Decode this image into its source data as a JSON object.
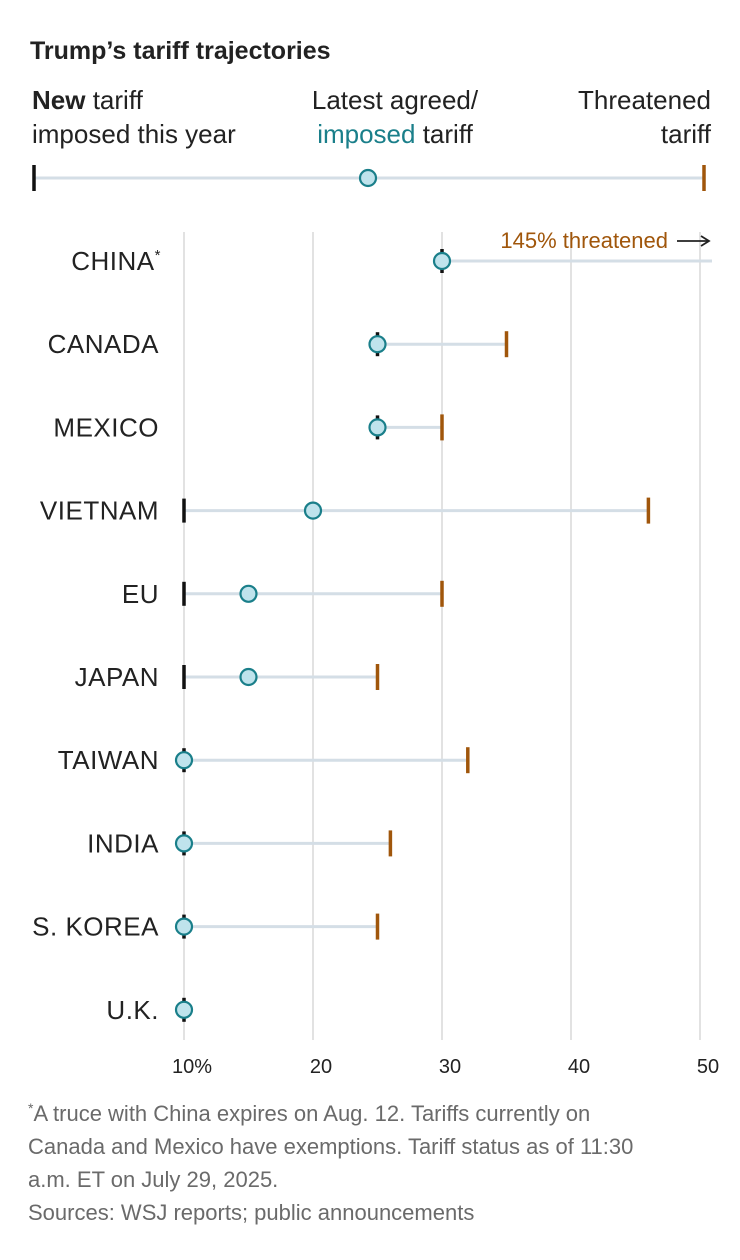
{
  "colors": {
    "new_tariff": "#111111",
    "agreed": "#1a7f8a",
    "agreed_fill": "#bfe3ec",
    "threatened": "#a0560b",
    "range_line": "#d4dee6",
    "grid": "#e2e2e2",
    "arrow": "#222222"
  },
  "chart_data": {
    "type": "dot-range",
    "title": "Trump’s tariff trajectories",
    "legend": {
      "new": {
        "bold": "New",
        "rest": "tariff",
        "line2": "imposed this year"
      },
      "agreed": {
        "line1": "Latest agreed/",
        "line2_colored": "imposed",
        "line2_rest": "tariff"
      },
      "threatened": {
        "line1": "Threatened",
        "line2": "tariff"
      }
    },
    "x_ticks": [
      {
        "value": 10,
        "label": "10%"
      },
      {
        "value": 20,
        "label": "20"
      },
      {
        "value": 30,
        "label": "30"
      },
      {
        "value": 40,
        "label": "40"
      },
      {
        "value": 50,
        "label": "50"
      }
    ],
    "xlim": [
      10,
      50
    ],
    "series": [
      {
        "country": "CHINA",
        "mark": "*",
        "new_tariff": 30,
        "agreed": 30,
        "threatened": 145,
        "offscale_note": "145% threatened"
      },
      {
        "country": "CANADA",
        "new_tariff": 25,
        "agreed": 25,
        "threatened": 35
      },
      {
        "country": "MEXICO",
        "new_tariff": 25,
        "agreed": 25,
        "threatened": 30
      },
      {
        "country": "VIETNAM",
        "new_tariff": 10,
        "agreed": 20,
        "threatened": 46
      },
      {
        "country": "EU",
        "new_tariff": 10,
        "agreed": 15,
        "threatened": 30
      },
      {
        "country": "JAPAN",
        "new_tariff": 10,
        "agreed": 15,
        "threatened": 25
      },
      {
        "country": "TAIWAN",
        "new_tariff": 10,
        "agreed": 10,
        "threatened": 32
      },
      {
        "country": "INDIA",
        "new_tariff": 10,
        "agreed": 10,
        "threatened": 26
      },
      {
        "country": "S. KOREA",
        "new_tariff": 10,
        "agreed": 10,
        "threatened": 25
      },
      {
        "country": "U.K.",
        "new_tariff": 10,
        "agreed": 10,
        "threatened": null
      }
    ],
    "footnote": {
      "mark": "*",
      "lines": [
        "A truce with China expires on Aug. 12. Tariffs currently on",
        "Canada and Mexico have exemptions. Tariff status as of 11:30",
        "a.m. ET on July 29, 2025."
      ],
      "sources": "Sources: WSJ reports; public announcements"
    }
  }
}
